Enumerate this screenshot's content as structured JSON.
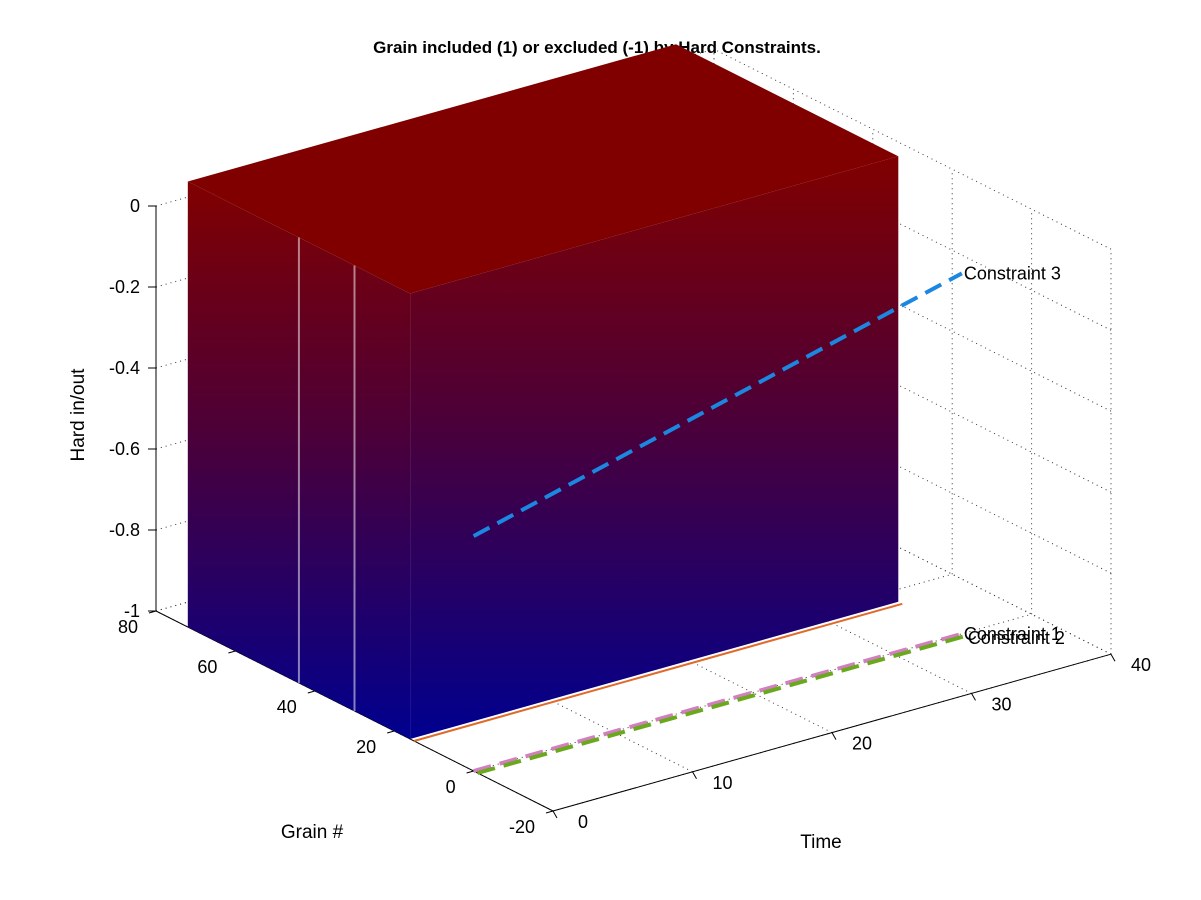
{
  "chart_data": {
    "type": "surface3d",
    "title": "Grain included (1) or excluded (-1) by Hard Constraints.",
    "xlabel": "Time",
    "ylabel": "Grain #",
    "zlabel": "Hard in/out",
    "xlim": [
      0,
      40
    ],
    "ylim": [
      -20,
      80
    ],
    "zlim": [
      -1,
      0
    ],
    "x_ticks": [
      "0",
      "10",
      "20",
      "30",
      "40"
    ],
    "y_ticks": [
      "-20",
      "0",
      "20",
      "40",
      "60",
      "80"
    ],
    "z_ticks": [
      "-1",
      "-0.8",
      "-0.6",
      "-0.4",
      "-0.2",
      "0"
    ],
    "grid": true,
    "surface": {
      "time_range": [
        0,
        35
      ],
      "grain_range": [
        16,
        72
      ],
      "values": [
        -1,
        1
      ],
      "colormap": [
        "#00008f",
        "#800000"
      ]
    },
    "series": [
      {
        "name": "Constraint 1",
        "color": "#d27fbf",
        "style": "dashed",
        "x": [
          0,
          35
        ],
        "y": [
          0,
          0
        ],
        "z": [
          -1,
          -1
        ]
      },
      {
        "name": "Constraint 2",
        "color": "#6aa81e",
        "style": "dashed",
        "x": [
          0,
          35
        ],
        "y": [
          -1,
          -1
        ],
        "z": [
          -1,
          -1
        ]
      },
      {
        "name": "Constraint 3",
        "color": "#1b87e0",
        "style": "dashed",
        "x": [
          0,
          35
        ],
        "y": [
          0,
          0
        ],
        "z": [
          -0.42,
          -0.11
        ]
      }
    ]
  }
}
